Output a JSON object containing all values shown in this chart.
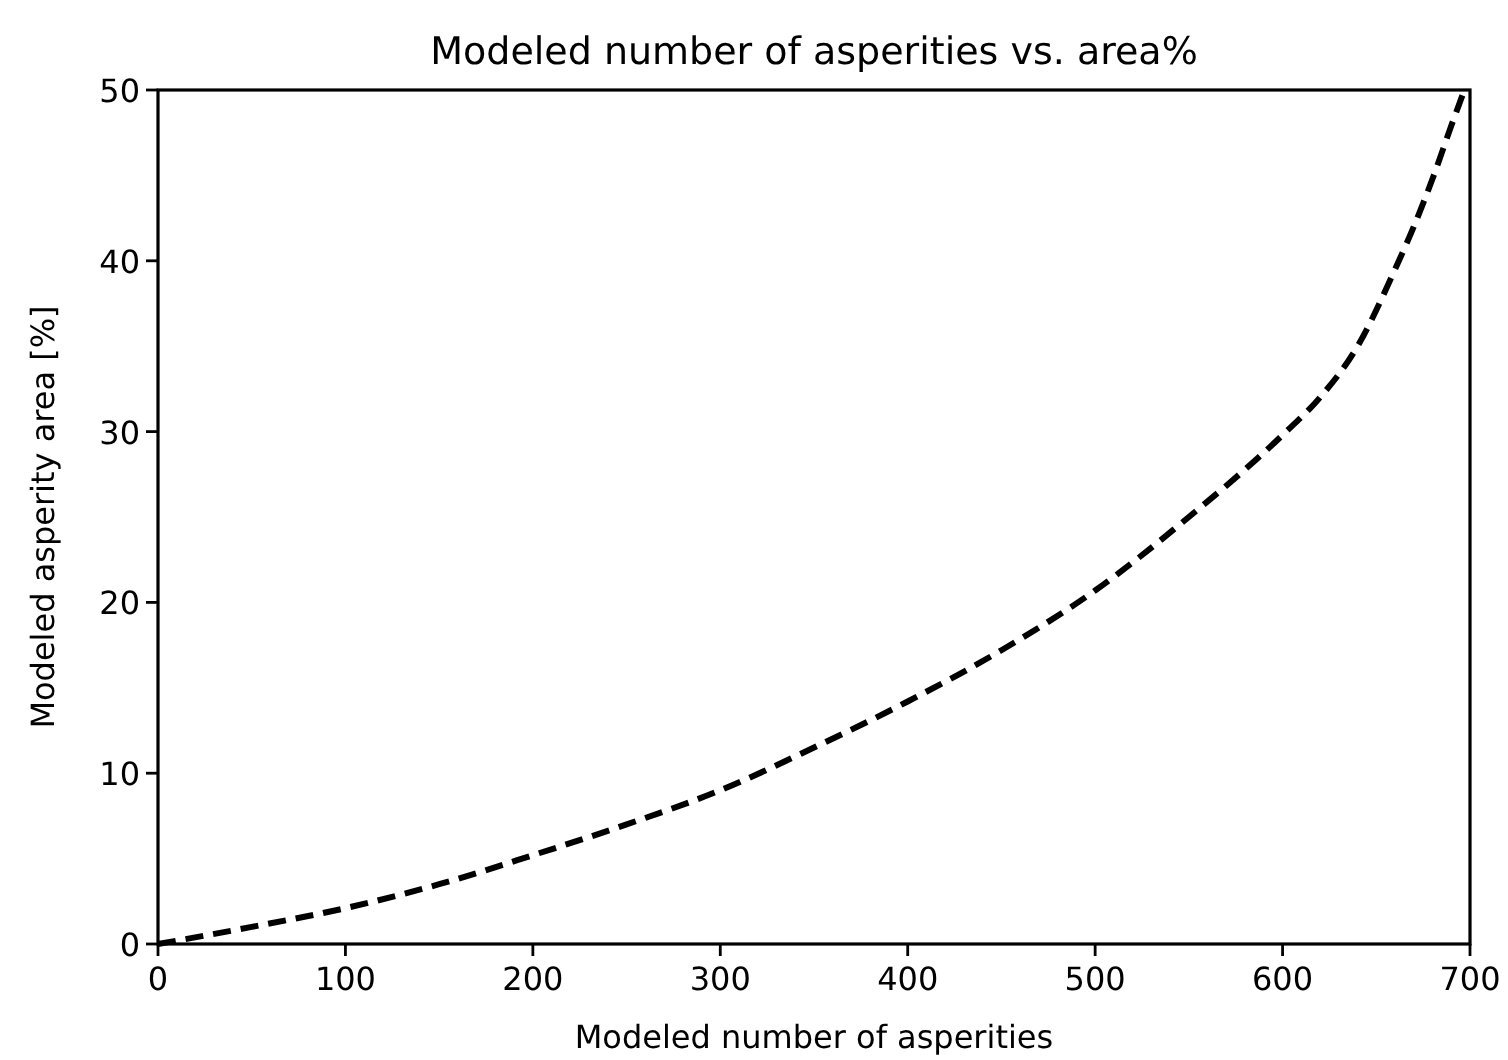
{
  "chart_data": {
    "type": "line",
    "title": "Modeled number of asperities vs. area%",
    "xlabel": "Modeled number of asperities",
    "ylabel": "Modeled asperity area [%]",
    "series": [
      {
        "color": "#000000",
        "x": [
          0,
          50,
          100,
          150,
          200,
          250,
          300,
          350,
          400,
          450,
          500,
          550,
          600,
          620,
          640,
          660,
          670,
          680,
          690,
          697
        ],
        "values": [
          0,
          1,
          2.1,
          3.5,
          5.2,
          7,
          9,
          11.5,
          14.2,
          17.2,
          20.7,
          25,
          29.8,
          32,
          35,
          39.5,
          42,
          44.8,
          47.9,
          50
        ]
      }
    ],
    "line_style": "dashed",
    "xlim": [
      0,
      700
    ],
    "ylim": [
      0,
      50
    ],
    "xticks": [
      0,
      100,
      200,
      300,
      400,
      500,
      600,
      700
    ],
    "yticks": [
      0,
      10,
      20,
      30,
      40,
      50
    ]
  }
}
